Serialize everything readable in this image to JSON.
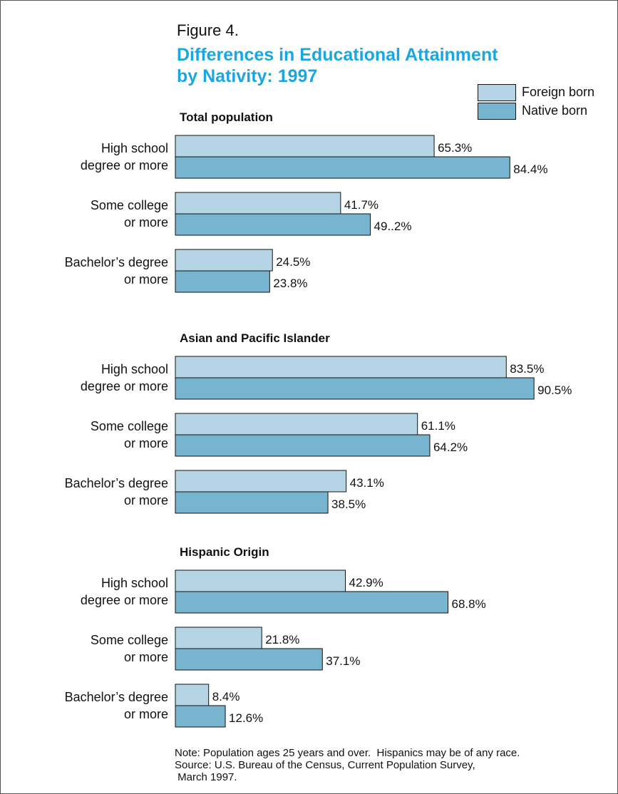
{
  "figure_label": "Figure 4.",
  "title_line1": "Differences in Educational Attainment",
  "title_line2": "by Nativity:  1997",
  "legend": [
    {
      "label": "Foreign born",
      "color": "#b5d5e6"
    },
    {
      "label": "Native born",
      "color": "#76b4d0"
    }
  ],
  "notes": {
    "line1": "Note: Population ages 25 years and over.  Hispanics may be of any race.",
    "line2": "Source: U.S. Bureau of the Census, Current Population Survey,",
    "line3": " March 1997."
  },
  "chart_data": {
    "type": "bar",
    "orientation": "horizontal",
    "grid": false,
    "legend_position": "top-right",
    "series": [
      {
        "name": "Foreign born",
        "color": "#b5d5e6"
      },
      {
        "name": "Native born",
        "color": "#76b4d0"
      }
    ],
    "panels": [
      {
        "title": "Total population",
        "categories": [
          {
            "label_lines": [
              "High school",
              "degree or more"
            ],
            "values": [
              65.3,
              84.4
            ],
            "value_labels": [
              "65.3%",
              "84.4%"
            ]
          },
          {
            "label_lines": [
              "Some college",
              "or more"
            ],
            "values": [
              41.7,
              49.2
            ],
            "value_labels": [
              "41.7%",
              "49..2%"
            ]
          },
          {
            "label_lines": [
              "Bachelor’s degree",
              "or more"
            ],
            "values": [
              24.5,
              23.8
            ],
            "value_labels": [
              "24.5%",
              "23.8%"
            ]
          }
        ]
      },
      {
        "title": "Asian and Pacific Islander",
        "categories": [
          {
            "label_lines": [
              "High school",
              "degree or more"
            ],
            "values": [
              83.5,
              90.5
            ],
            "value_labels": [
              "83.5%",
              "90.5%"
            ]
          },
          {
            "label_lines": [
              "Some college",
              "or more"
            ],
            "values": [
              61.1,
              64.2
            ],
            "value_labels": [
              "61.1%",
              "64.2%"
            ]
          },
          {
            "label_lines": [
              "Bachelor’s degree",
              "or more"
            ],
            "values": [
              43.1,
              38.5
            ],
            "value_labels": [
              "43.1%",
              "38.5%"
            ]
          }
        ]
      },
      {
        "title": "Hispanic Origin",
        "categories": [
          {
            "label_lines": [
              "High school",
              "degree or more"
            ],
            "values": [
              42.9,
              68.8
            ],
            "value_labels": [
              "42.9%",
              "68.8%"
            ]
          },
          {
            "label_lines": [
              "Some college",
              "or more"
            ],
            "values": [
              21.8,
              37.1
            ],
            "value_labels": [
              "21.8%",
              "37.1%"
            ]
          },
          {
            "label_lines": [
              "Bachelor’s degree",
              "or more"
            ],
            "values": [
              8.4,
              12.6
            ],
            "value_labels": [
              "8.4%",
              "12.6%"
            ]
          }
        ]
      }
    ]
  }
}
